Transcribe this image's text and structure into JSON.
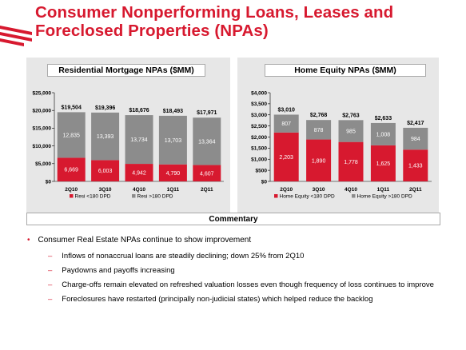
{
  "slide": {
    "title_line1": "Consumer Nonperforming Loans, Leases and",
    "title_line2": "Foreclosed Properties (NPAs)",
    "brand_color": "#d7192f"
  },
  "colors": {
    "red_series": "#d7192f",
    "gray_series": "#8c8c8c"
  },
  "chart_data": [
    {
      "type": "bar",
      "stacked": true,
      "title": "Residential Mortgage NPAs ($MM)",
      "categories": [
        "2Q10",
        "3Q10",
        "4Q10",
        "1Q11",
        "2Q11"
      ],
      "ylim": [
        0,
        25000
      ],
      "yticks": [
        0,
        5000,
        10000,
        15000,
        20000,
        25000
      ],
      "ytick_labels": [
        "$0",
        "$5,000",
        "$10,000",
        "$15,000",
        "$20,000",
        "$25,000"
      ],
      "series": [
        {
          "name": "Resi <180 DPD",
          "color": "#d7192f",
          "values": [
            6669,
            6003,
            4942,
            4790,
            4607
          ],
          "labels": [
            "6,669",
            "6,003",
            "4,942",
            "4,790",
            "4,607"
          ]
        },
        {
          "name": "Resi >180 DPD",
          "color": "#8c8c8c",
          "values": [
            12835,
            13393,
            13734,
            13703,
            13364
          ],
          "labels": [
            "12,835",
            "13,393",
            "13,734",
            "13,703",
            "13,364"
          ]
        }
      ],
      "totals": [
        "$19,504",
        "$19,396",
        "$18,676",
        "$18,493",
        "$17,971"
      ],
      "legend": "bottom"
    },
    {
      "type": "bar",
      "stacked": true,
      "title": "Home Equity NPAs ($MM)",
      "categories": [
        "2Q10",
        "3Q10",
        "4Q10",
        "1Q11",
        "2Q11"
      ],
      "ylim": [
        0,
        4000
      ],
      "yticks": [
        0,
        500,
        1000,
        1500,
        2000,
        2500,
        3000,
        3500,
        4000
      ],
      "ytick_labels": [
        "$0",
        "$500",
        "$1,000",
        "$1,500",
        "$2,000",
        "$2,500",
        "$3,000",
        "$3,500",
        "$4,000"
      ],
      "series": [
        {
          "name": "Home Equity <180 DPD",
          "color": "#d7192f",
          "values": [
            2203,
            1890,
            1778,
            1625,
            1433
          ],
          "labels": [
            "2,203",
            "1,890",
            "1,778",
            "1,625",
            "1,433"
          ]
        },
        {
          "name": "Home Equity >180 DPD",
          "color": "#8c8c8c",
          "values": [
            807,
            878,
            985,
            1008,
            984
          ],
          "labels": [
            "807",
            "878",
            "985",
            "1,008",
            "984"
          ]
        }
      ],
      "totals": [
        "$3,010",
        "$2,768",
        "$2,763",
        "$2,633",
        "$2,417"
      ],
      "legend": "bottom"
    }
  ],
  "commentary": {
    "title": "Commentary",
    "bullet": "Consumer Real Estate NPAs continue to show improvement",
    "subs": [
      "Inflows of nonaccrual loans are steadily declining; down 25% from 2Q10",
      "Paydowns and payoffs increasing",
      "Charge-offs remain elevated on refreshed valuation losses even though frequency of loss continues to improve",
      "Foreclosures have restarted (principally non-judicial states) which helped reduce the backlog"
    ]
  }
}
